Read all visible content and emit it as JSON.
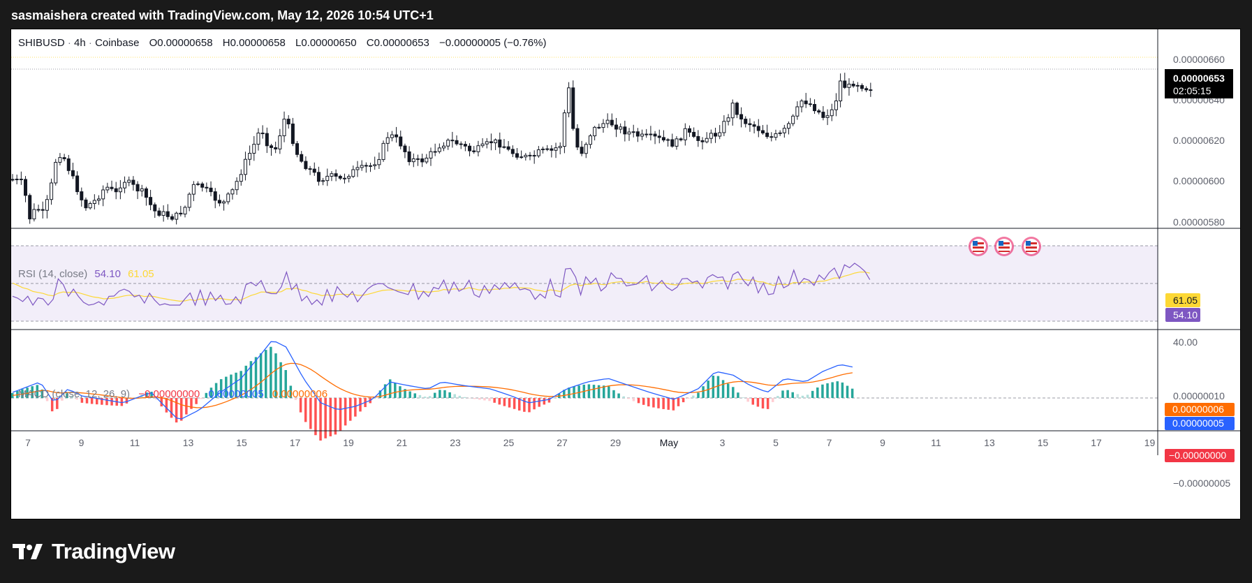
{
  "header": {
    "caption": "sasmaishera created with TradingView.com, May 12, 2026 10:54 UTC+1"
  },
  "footer": {
    "brand": "TradingView"
  },
  "colors": {
    "up": "#089981",
    "down": "#f23645",
    "rsi": "#7e57c2",
    "rsi_ma": "#fdd835",
    "macd": "#2962ff",
    "signal": "#ff6d00",
    "hist_up_strong": "#26a69a",
    "hist_up_weak": "#b2dfdb",
    "hist_dn_strong": "#ff5252",
    "hist_dn_weak": "#ffcdd2"
  },
  "chart_data": {
    "type": "candlestick",
    "symbol": "SHIBUSD",
    "interval": "4h",
    "exchange": "Coinbase",
    "ohlc_labels": {
      "o": "O",
      "h": "H",
      "l": "L",
      "c": "C"
    },
    "ohlc": {
      "open": "0.00000658",
      "high": "0.00000658",
      "low": "0.00000650",
      "close": "0.00000653",
      "change": "−0.00000005 (−0.76%)"
    },
    "last_price": "0.00000653",
    "countdown": "02:05:15",
    "y_ticks": [
      "0.00000660",
      "0.00000640",
      "0.00000620",
      "0.00000600",
      "0.00000580"
    ],
    "y_tick_values": [
      6.6,
      6.4,
      6.2,
      6.0,
      5.8
    ],
    "x_ticks": [
      "7",
      "9",
      "11",
      "13",
      "15",
      "17",
      "19",
      "21",
      "23",
      "25",
      "27",
      "29",
      "May",
      "3",
      "5",
      "7",
      "9",
      "11",
      "13",
      "15",
      "17",
      "19"
    ],
    "rsi": {
      "label": "RSI (14, close)",
      "value": "54.10",
      "ma": "61.05",
      "tick": "40.00",
      "bands": [
        70,
        50,
        30
      ]
    },
    "macd": {
      "label": "MACD (close, 12, 26, 9)",
      "hist": "−0.00000000",
      "macd": "0.00000005",
      "signal": "0.00000006",
      "ticks": [
        "0.00000010",
        "−0.00000005"
      ]
    }
  }
}
